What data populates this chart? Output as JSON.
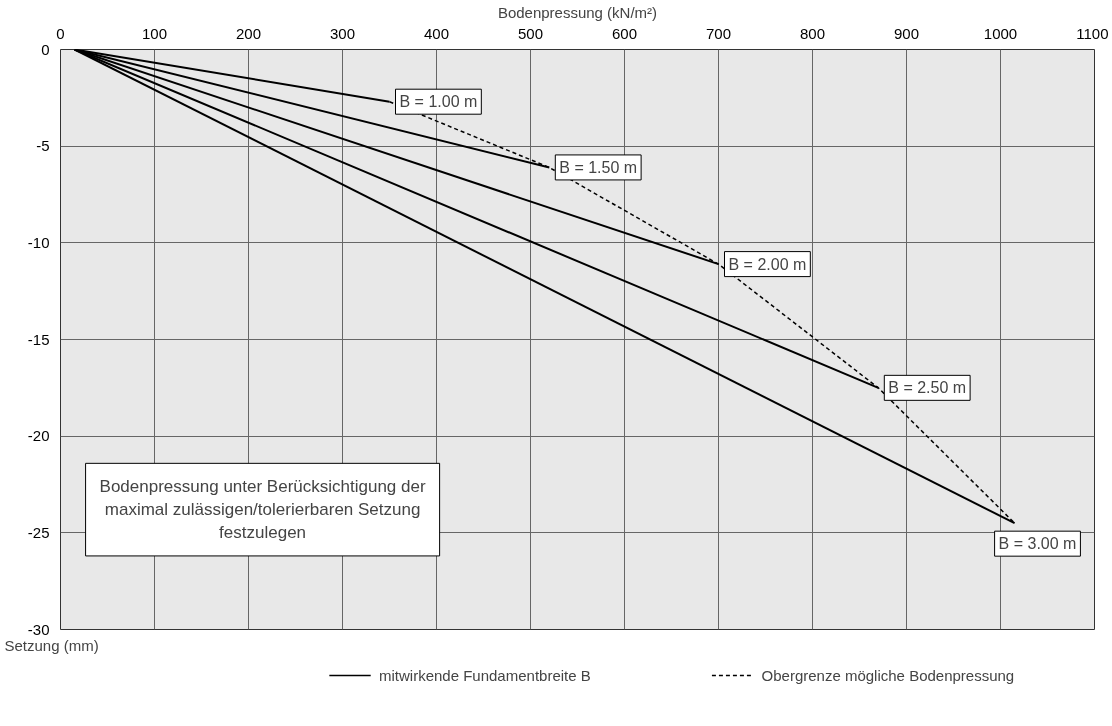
{
  "chart_data": {
    "type": "line",
    "xlabel": "Bodenpressung (kN/m²)",
    "ylabel": "Setzung (mm)",
    "xlim": [
      0,
      1100
    ],
    "xticks": [
      0,
      100,
      200,
      300,
      400,
      500,
      600,
      700,
      800,
      900,
      1000,
      1100
    ],
    "ylim": [
      -30,
      0
    ],
    "yticks": [
      0,
      -5,
      -10,
      -15,
      -20,
      -25,
      -30
    ],
    "grid": true,
    "legend": "bottom",
    "marker": "none",
    "series": [
      {
        "name": "mitwirkende Fundamentbreite B",
        "color": "#000000",
        "line_style": "solid",
        "x": [
          15,
          350
        ],
        "values": [
          0,
          -2.7
        ]
      },
      {
        "color": "#000000",
        "line_style": "solid",
        "x": [
          15,
          520
        ],
        "values": [
          0,
          -6.1
        ]
      },
      {
        "color": "#000000",
        "line_style": "solid",
        "x": [
          15,
          700
        ],
        "values": [
          0,
          -11.1
        ]
      },
      {
        "color": "#000000",
        "line_style": "solid",
        "x": [
          15,
          870
        ],
        "values": [
          0,
          -17.5
        ]
      },
      {
        "color": "#000000",
        "line_style": "solid",
        "x": [
          15,
          1015
        ],
        "values": [
          0,
          -24.5
        ]
      },
      {
        "name": "Obergrenze mögliche Bodenpressung",
        "color": "#000000",
        "line_style": "dashed",
        "x": [
          350,
          520,
          700,
          870,
          1015
        ],
        "values": [
          -2.7,
          -6.1,
          -11.1,
          -17.5,
          -24.5
        ]
      }
    ],
    "annotations": [
      {
        "text": "B = 1.00 m",
        "x": 350,
        "y": -2.7
      },
      {
        "text": "B = 1.50 m",
        "x": 520,
        "y": -6.1
      },
      {
        "text": "B = 2.00 m",
        "x": 700,
        "y": -11.1
      },
      {
        "text": "B = 2.50 m",
        "x": 870,
        "y": -17.5
      },
      {
        "text": "B = 3.00 m",
        "x": 1015,
        "y": -24.5
      },
      "Bodenpressung unter Berücksichtigung der\nmaximal zulässigen/tolerierbaren Setzung\nfestzulegen"
    ]
  }
}
